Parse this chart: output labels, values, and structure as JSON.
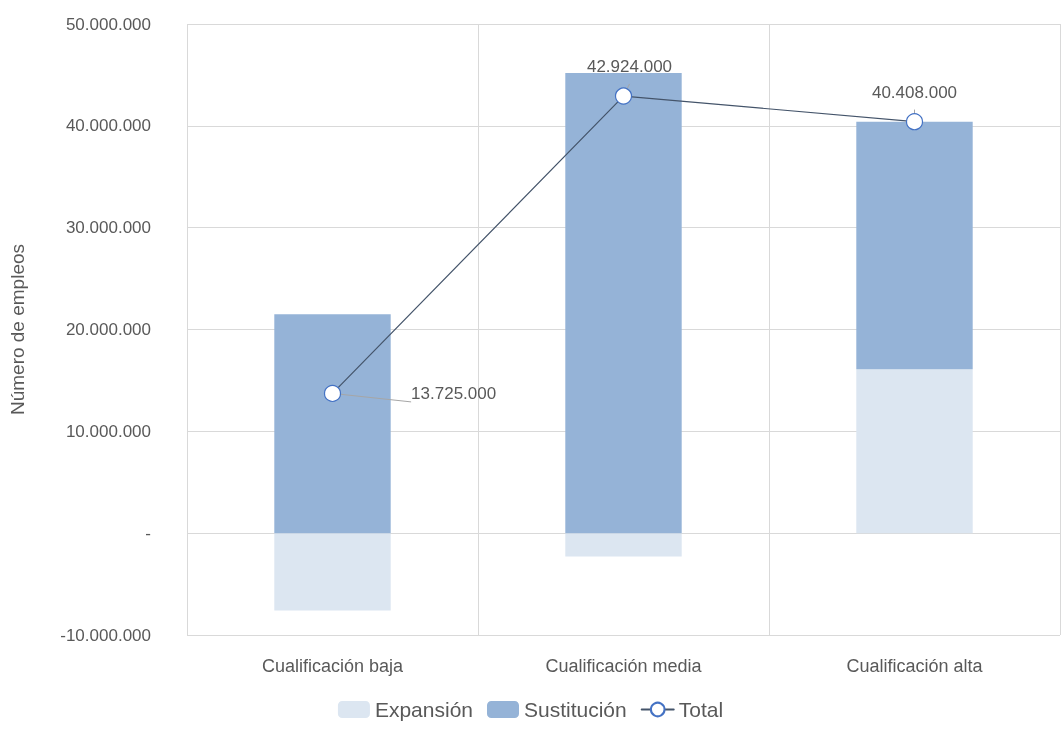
{
  "chart_data": {
    "type": "bar",
    "ylabel": "Número de empleos",
    "categories": [
      "Cualificación baja",
      "Cualificación media",
      "Cualificación alta"
    ],
    "stacked": true,
    "series": [
      {
        "name": "Expansión",
        "color": "#dce6f1",
        "values": [
          -7600000,
          -2300000,
          16100000
        ]
      },
      {
        "name": "Sustitución",
        "color": "#95b3d7",
        "values": [
          21500000,
          45200000,
          24300000
        ]
      },
      {
        "name": "Total",
        "type": "line",
        "color": "#44546a",
        "values": [
          13725000,
          42924000,
          40408000
        ],
        "value_labels": [
          "13.725.000",
          "42.924.000",
          "40.408.000"
        ]
      }
    ],
    "ylim": [
      -10000000,
      50000000
    ],
    "yticks": [
      {
        "value": -10000000,
        "label": "-10.000.000"
      },
      {
        "value": 0,
        "label": "-"
      },
      {
        "value": 10000000,
        "label": "10.000.000"
      },
      {
        "value": 20000000,
        "label": "20.000.000"
      },
      {
        "value": 30000000,
        "label": "30.000.000"
      },
      {
        "value": 40000000,
        "label": "40.000.000"
      },
      {
        "value": 50000000,
        "label": "50.000.000"
      }
    ],
    "grid": true,
    "legend": "bottom",
    "marker": "circle",
    "line_style": "solid"
  }
}
